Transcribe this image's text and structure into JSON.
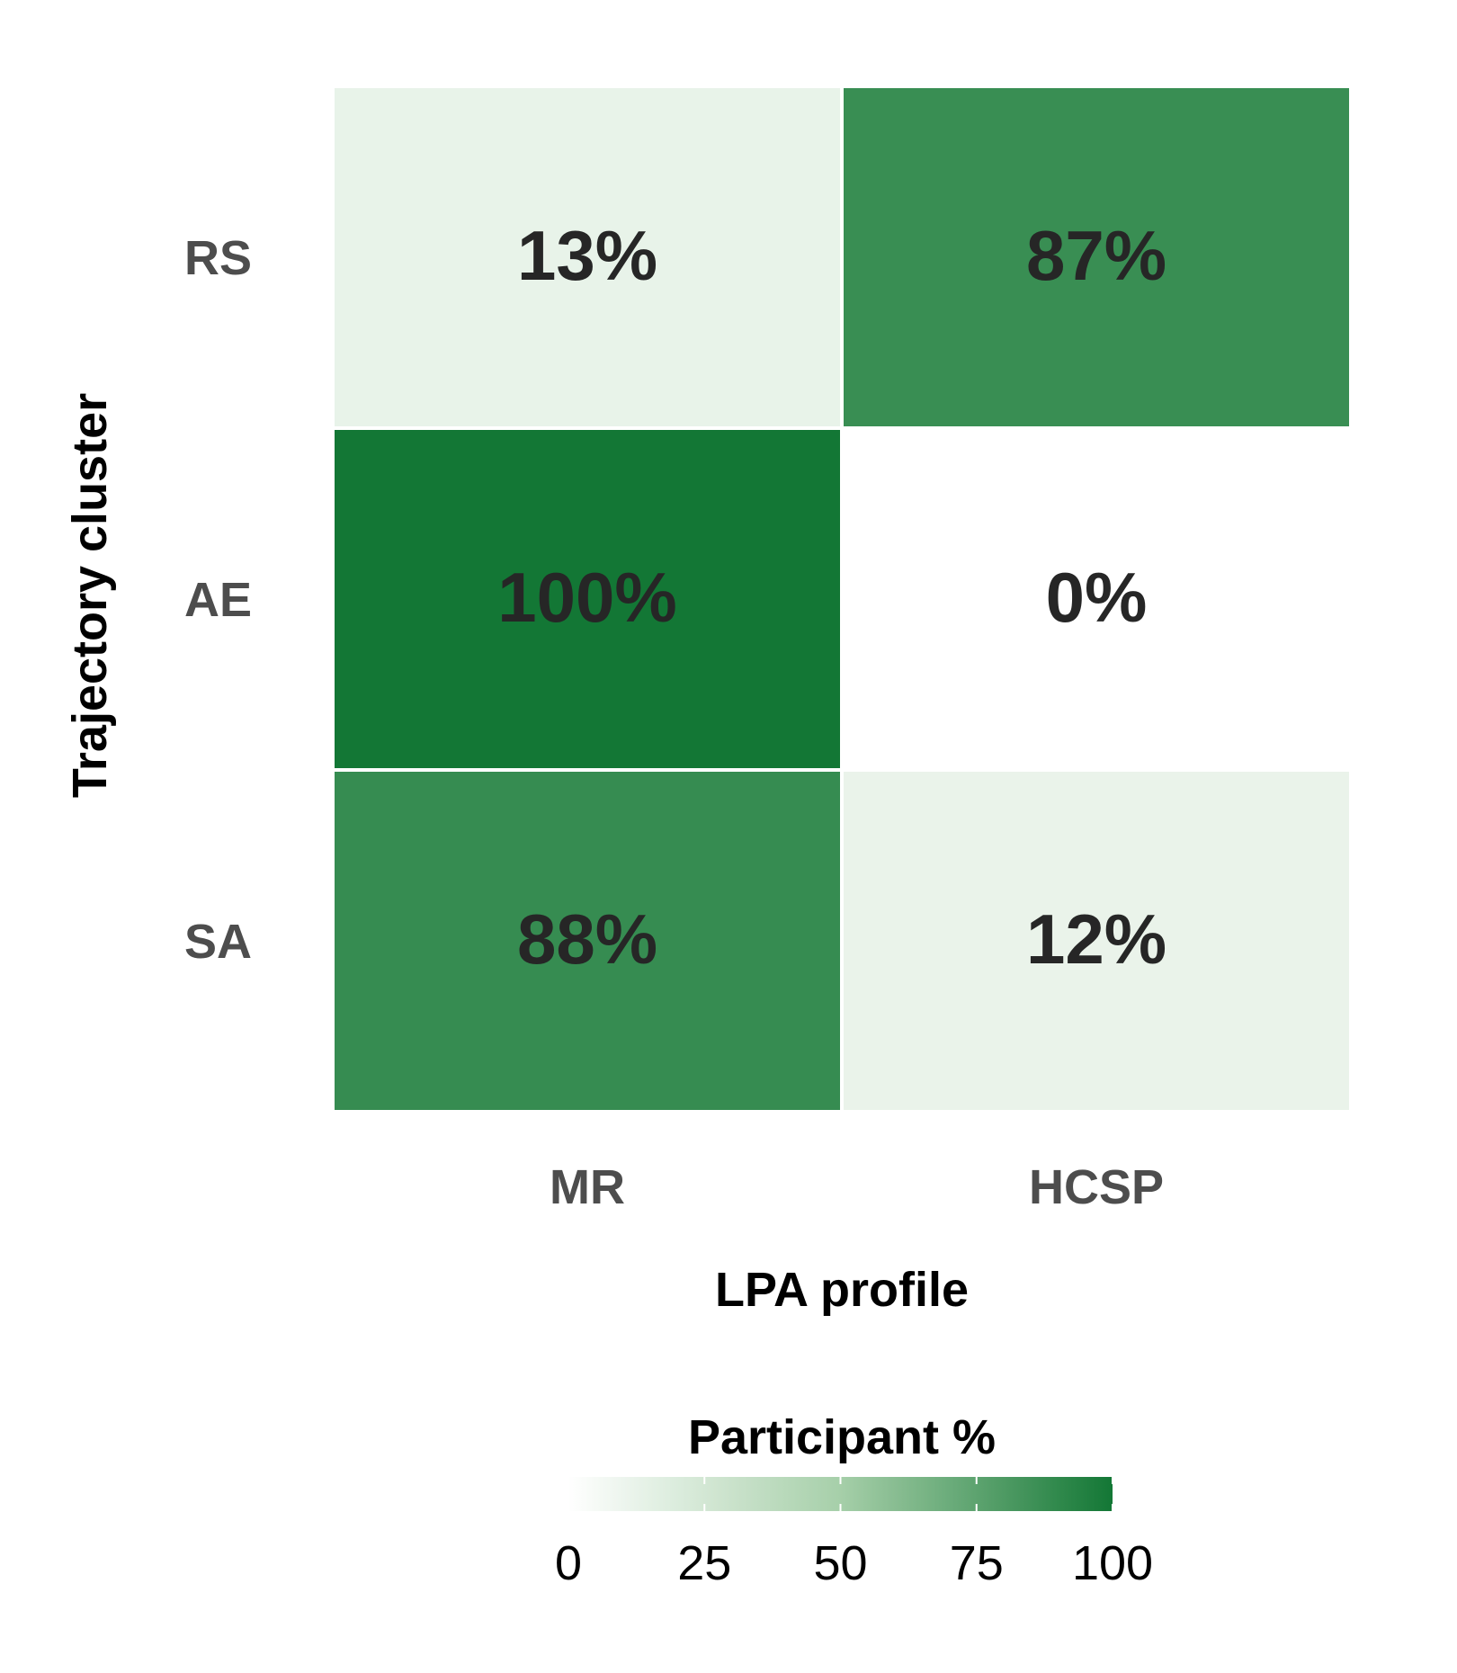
{
  "chart_data": {
    "type": "heatmap",
    "title": "",
    "xlabel": "LPA profile",
    "ylabel": "Trajectory cluster",
    "x_categories": [
      "MR",
      "HCSP"
    ],
    "y_categories": [
      "RS",
      "AE",
      "SA"
    ],
    "values": [
      [
        13,
        87
      ],
      [
        100,
        0
      ],
      [
        88,
        12
      ]
    ],
    "cell_labels": [
      [
        "13%",
        "87%"
      ],
      [
        "100%",
        "0%"
      ],
      [
        "88%",
        "12%"
      ]
    ],
    "legend": {
      "title": "Participant %",
      "position": "bottom",
      "range": [
        0,
        100
      ],
      "ticks": [
        0,
        25,
        50,
        75,
        100
      ],
      "tick_labels": [
        "0",
        "25",
        "50",
        "75",
        "100"
      ]
    },
    "colors": {
      "low": "#ffffff",
      "mid": "#a6cfa9",
      "high": "#137735",
      "label_text": "#262626",
      "axis_text": "#4d4d4d",
      "title_text": "#000000"
    },
    "grid": false
  }
}
